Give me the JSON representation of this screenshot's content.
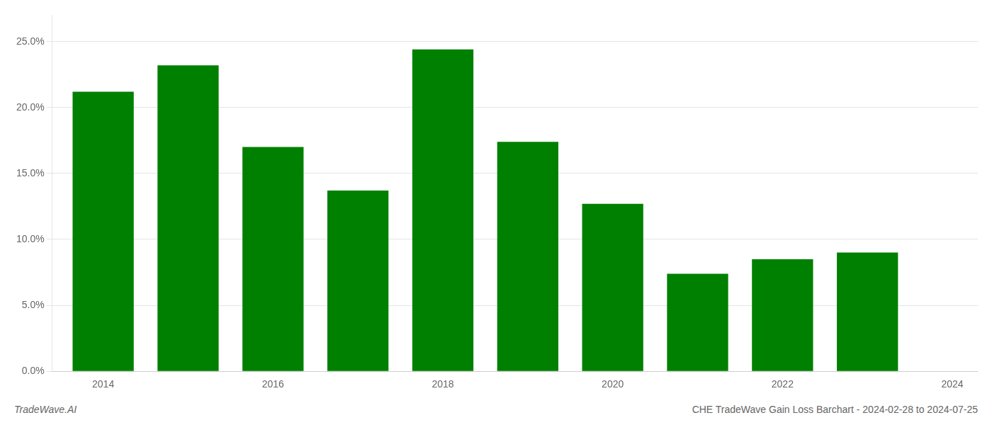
{
  "chart_data": {
    "type": "bar",
    "x": [
      2014,
      2015,
      2016,
      2017,
      2018,
      2019,
      2020,
      2021,
      2022,
      2023
    ],
    "values": [
      0.212,
      0.232,
      0.17,
      0.137,
      0.244,
      0.174,
      0.127,
      0.074,
      0.085,
      0.09
    ],
    "color": "#008000",
    "xlim": [
      2013.4,
      2024.3
    ],
    "xticks": [
      2014,
      2016,
      2018,
      2020,
      2022,
      2024
    ],
    "ylim": [
      0,
      0.27
    ],
    "yticks": [
      {
        "value": 0.0,
        "label": "0.0%"
      },
      {
        "value": 0.05,
        "label": "5.0%"
      },
      {
        "value": 0.1,
        "label": "10.0%"
      },
      {
        "value": 0.15,
        "label": "15.0%"
      },
      {
        "value": 0.2,
        "label": "20.0%"
      },
      {
        "value": 0.25,
        "label": "25.0%"
      }
    ],
    "grid": true,
    "annotations": [
      "TradeWave.AI",
      "CHE TradeWave Gain Loss Barchart - 2024-02-28 to 2024-07-25"
    ]
  }
}
